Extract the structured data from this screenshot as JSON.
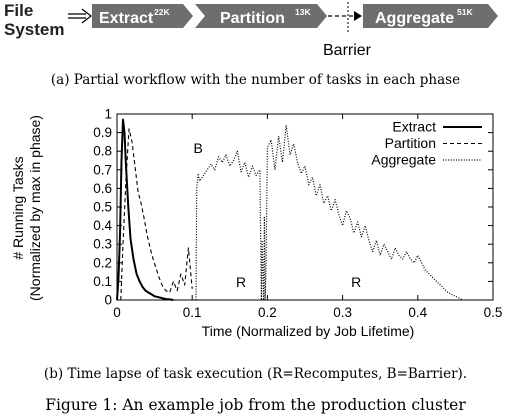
{
  "workflow": {
    "source": [
      "File",
      "System"
    ],
    "phases": [
      {
        "name": "Extract",
        "tasks": "22K"
      },
      {
        "name": "Partition",
        "tasks": "13K"
      },
      {
        "name": "Aggregate",
        "tasks": "51K"
      }
    ],
    "barrier_label": "Barrier",
    "colors": {
      "box": "#6e6e6e",
      "box_text": "#ffffff"
    }
  },
  "caption_a": "(a) Partial workflow with the number of tasks in each phase",
  "caption_b": "(b) Time lapse of task execution (R=Recomputes, B=Barrier).",
  "figure_caption": "Figure 1: An example job from the production cluster",
  "chart_data": {
    "type": "line",
    "xlabel": "Time (Normalized by Job Lifetime)",
    "ylabel": [
      "# Running Tasks",
      "(Normalized by max in phase)"
    ],
    "xlim": [
      0,
      0.5
    ],
    "ylim": [
      0,
      1
    ],
    "xticks": [
      "0",
      "0.1",
      "0.2",
      "0.3",
      "0.4",
      "0.5"
    ],
    "yticks": [
      "0",
      "0.1",
      "0.2",
      "0.3",
      "0.4",
      "0.5",
      "0.6",
      "0.7",
      "0.8",
      "0.9",
      "1"
    ],
    "legend_position": "top-right",
    "grid": false,
    "annotations": [
      {
        "text": "B",
        "x": 0.108,
        "y": 0.79
      },
      {
        "text": "R",
        "x": 0.165,
        "y": 0.07
      },
      {
        "text": "R",
        "x": 0.318,
        "y": 0.07
      }
    ],
    "series": [
      {
        "name": "Extract",
        "style": "solid",
        "x": [
          0,
          0.002,
          0.004,
          0.006,
          0.008,
          0.01,
          0.012,
          0.015,
          0.018,
          0.022,
          0.026,
          0.03,
          0.034,
          0.038,
          0.042,
          0.046,
          0.05,
          0.055,
          0.06,
          0.065,
          0.07,
          0.075
        ],
        "y": [
          0,
          0.12,
          0.35,
          0.75,
          0.97,
          0.9,
          0.72,
          0.5,
          0.33,
          0.22,
          0.14,
          0.1,
          0.07,
          0.05,
          0.04,
          0.03,
          0.02,
          0.015,
          0.01,
          0.005,
          0.003,
          0
        ]
      },
      {
        "name": "Partition",
        "style": "dashed",
        "x": [
          0.005,
          0.008,
          0.012,
          0.016,
          0.02,
          0.024,
          0.028,
          0.032,
          0.036,
          0.04,
          0.044,
          0.048,
          0.052,
          0.056,
          0.06,
          0.065,
          0.07,
          0.075,
          0.08,
          0.085,
          0.09,
          0.095,
          0.1
        ],
        "y": [
          0,
          0.3,
          0.65,
          0.92,
          0.85,
          0.72,
          0.58,
          0.52,
          0.44,
          0.35,
          0.28,
          0.22,
          0.17,
          0.12,
          0.08,
          0.05,
          0.04,
          0.1,
          0.05,
          0.14,
          0.08,
          0.28,
          0.06
        ]
      },
      {
        "name": "Aggregate",
        "style": "dotted",
        "x": [
          0.105,
          0.106,
          0.108,
          0.11,
          0.115,
          0.12,
          0.125,
          0.13,
          0.135,
          0.14,
          0.145,
          0.15,
          0.155,
          0.16,
          0.165,
          0.17,
          0.175,
          0.18,
          0.185,
          0.19,
          0.192,
          0.193,
          0.195,
          0.196,
          0.197,
          0.198,
          0.2,
          0.205,
          0.21,
          0.215,
          0.22,
          0.225,
          0.23,
          0.235,
          0.24,
          0.245,
          0.25,
          0.255,
          0.26,
          0.265,
          0.27,
          0.275,
          0.28,
          0.285,
          0.29,
          0.295,
          0.3,
          0.305,
          0.31,
          0.315,
          0.32,
          0.325,
          0.33,
          0.335,
          0.34,
          0.345,
          0.35,
          0.355,
          0.36,
          0.365,
          0.37,
          0.375,
          0.38,
          0.385,
          0.39,
          0.395,
          0.4,
          0.405,
          0.41,
          0.415,
          0.42,
          0.425,
          0.43,
          0.435,
          0.44,
          0.445,
          0.45,
          0.455,
          0.46
        ],
        "y": [
          0,
          0.6,
          0.68,
          0.64,
          0.67,
          0.7,
          0.73,
          0.7,
          0.77,
          0.74,
          0.78,
          0.72,
          0.75,
          0.8,
          0.69,
          0.74,
          0.66,
          0.72,
          0.67,
          0.7,
          0,
          0.32,
          0,
          0.45,
          0,
          0.14,
          0.82,
          0.86,
          0.7,
          0.88,
          0.74,
          0.94,
          0.78,
          0.84,
          0.74,
          0.68,
          0.72,
          0.62,
          0.66,
          0.56,
          0.62,
          0.52,
          0.56,
          0.48,
          0.54,
          0.46,
          0.4,
          0.48,
          0.44,
          0.36,
          0.42,
          0.34,
          0.4,
          0.32,
          0.26,
          0.32,
          0.24,
          0.3,
          0.26,
          0.22,
          0.28,
          0.24,
          0.22,
          0.26,
          0.22,
          0.2,
          0.24,
          0.2,
          0.16,
          0.14,
          0.12,
          0.1,
          0.08,
          0.06,
          0.04,
          0.03,
          0.02,
          0.01,
          0
        ]
      }
    ]
  }
}
